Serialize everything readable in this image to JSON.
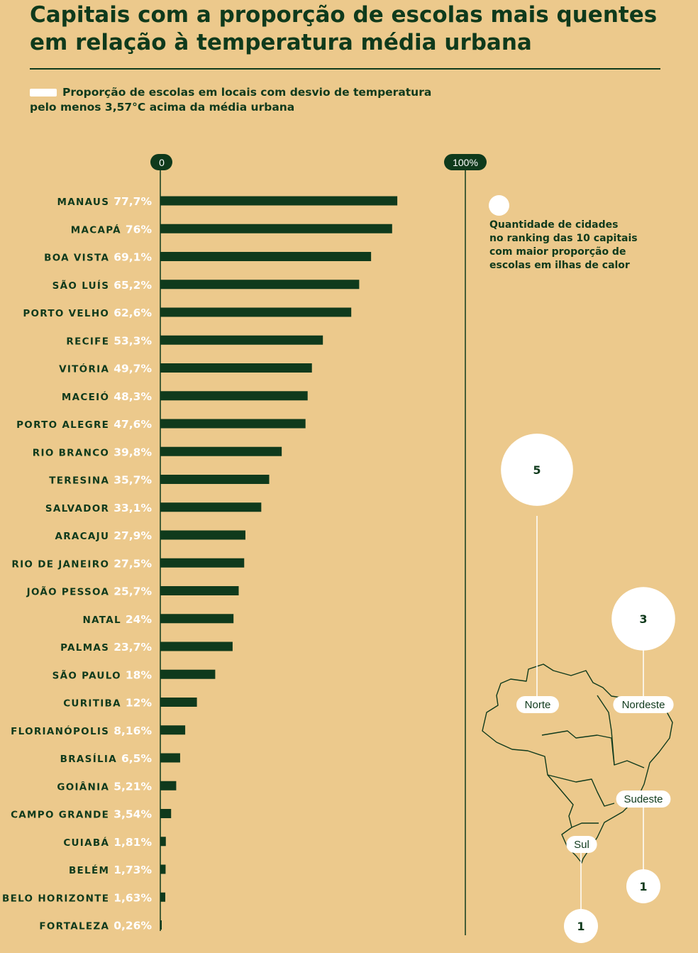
{
  "title": {
    "line1": "Capitais com a proporção de escolas mais quentes",
    "line2": "em relação à temperatura média urbana"
  },
  "legend": {
    "line1": "Proporção de escolas em locais com desvio de temperatura",
    "line2": "pelo menos 3,57°C acima da média urbana",
    "swatch_color": "#ffffff"
  },
  "colors": {
    "background": "#ecc98c",
    "bar": "#0f3a1c",
    "label_city": "#0f3a1c",
    "label_value": "#ffffff",
    "bubble": "#ffffff"
  },
  "chart_data": [
    {
      "type": "bar",
      "orientation": "horizontal",
      "xlim": [
        0,
        100
      ],
      "tick_labels": [
        "0",
        "100%"
      ],
      "categories": [
        "MANAUS",
        "MACAPÁ",
        "BOA VISTA",
        "SÃO LUÍS",
        "PORTO VELHO",
        "RECIFE",
        "VITÓRIA",
        "MACEIÓ",
        "PORTO ALEGRE",
        "RIO BRANCO",
        "TERESINA",
        "SALVADOR",
        "ARACAJU",
        "RIO DE JANEIRO",
        "JOÃO PESSOA",
        "NATAL",
        "PALMAS",
        "SÃO PAULO",
        "CURITIBA",
        "FLORIANÓPOLIS",
        "BRASÍLIA",
        "GOIÂNIA",
        "CAMPO GRANDE",
        "CUIABÁ",
        "BELÉM",
        "BELO HORIZONTE",
        "FORTALEZA"
      ],
      "values": [
        77.7,
        76,
        69.1,
        65.2,
        62.6,
        53.3,
        49.7,
        48.3,
        47.6,
        39.8,
        35.7,
        33.1,
        27.9,
        27.5,
        25.7,
        24,
        23.7,
        18,
        12,
        8.16,
        6.5,
        5.21,
        3.54,
        1.81,
        1.73,
        1.63,
        0.26
      ],
      "value_labels": [
        "77,7%",
        "76%",
        "69,1%",
        "65,2%",
        "62,6%",
        "53,3%",
        "49,7%",
        "48,3%",
        "47,6%",
        "39,8%",
        "35,7%",
        "33,1%",
        "27,9%",
        "27,5%",
        "25,7%",
        "24%",
        "23,7%",
        "18%",
        "12%",
        "8,16%",
        "6,5%",
        "5,21%",
        "3,54%",
        "1,81%",
        "1,73%",
        "1,63%",
        "0,26%"
      ]
    },
    {
      "type": "bubble",
      "legend": {
        "line1": "Quantidade de cidades",
        "line2": "no ranking das 10 capitais",
        "line3": "com maior proporção de",
        "line4": "escolas em ilhas de calor"
      },
      "categories": [
        "Norte",
        "Nordeste",
        "Sudeste",
        "Sul"
      ],
      "values": [
        5,
        3,
        1,
        1
      ]
    }
  ]
}
